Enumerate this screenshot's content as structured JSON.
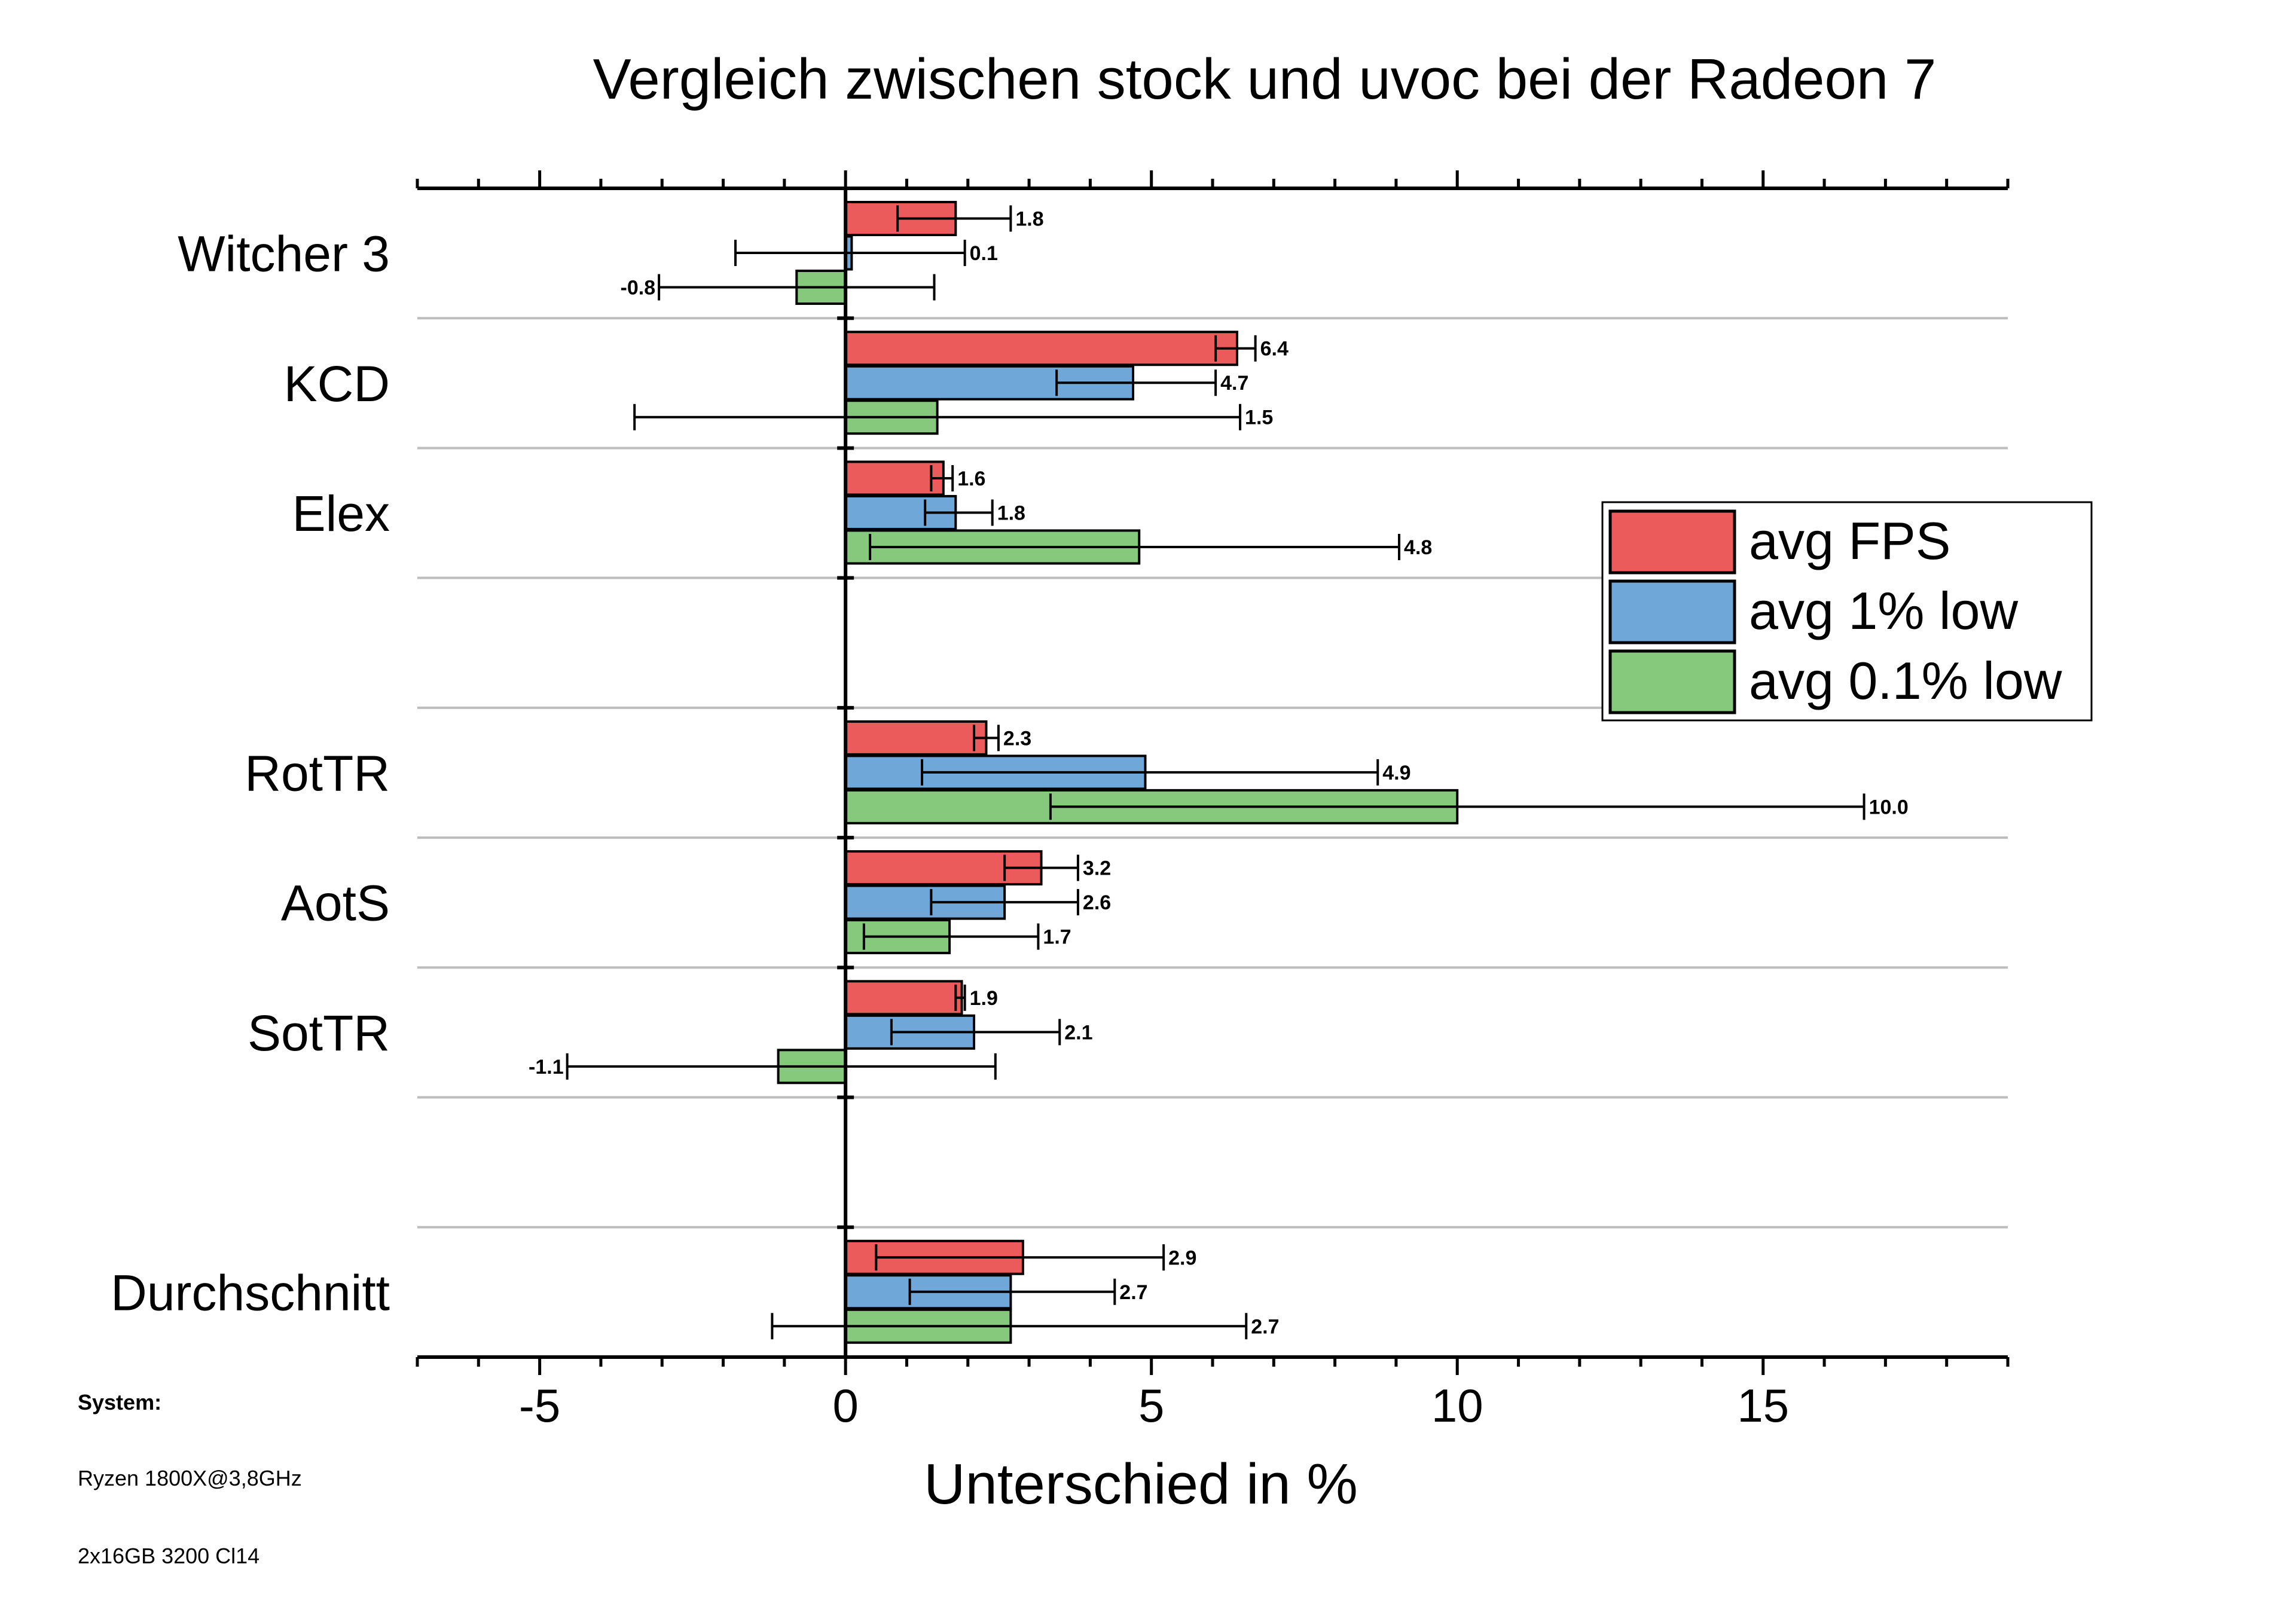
{
  "chart_data": {
    "type": "bar",
    "orientation": "horizontal",
    "title": "Vergleich zwischen stock und uvoc bei der Radeon 7",
    "xlabel": "Unterschied in %",
    "ylabel": "",
    "xlim": [
      -7,
      19
    ],
    "xticks": [
      -5,
      0,
      5,
      10,
      15
    ],
    "xtick_labels": [
      "-5",
      "0",
      "5",
      "10",
      "15"
    ],
    "legend_position": "right",
    "categories": [
      "Witcher 3",
      "KCD",
      "Elex",
      "",
      "RotTR",
      "AotS",
      "SotTR",
      "",
      "Durchschnitt"
    ],
    "series": [
      {
        "name": "avg FPS",
        "color": "#ec5b5b",
        "values": [
          1.8,
          6.4,
          1.6,
          null,
          2.3,
          3.2,
          1.9,
          null,
          2.9
        ],
        "labels": [
          "1.8",
          "6.4",
          "1.6",
          null,
          "2.3",
          "3.2",
          "1.9",
          null,
          "2.9"
        ],
        "err_low": [
          0.85,
          6.05,
          1.4,
          null,
          2.1,
          2.6,
          1.8,
          null,
          0.5
        ],
        "err_high": [
          2.7,
          6.7,
          1.75,
          null,
          2.5,
          3.8,
          1.95,
          null,
          5.2
        ]
      },
      {
        "name": "avg 1% low",
        "color": "#6fa8d8",
        "values": [
          0.1,
          4.7,
          1.8,
          null,
          4.9,
          2.6,
          2.1,
          null,
          2.7
        ],
        "labels": [
          "0.1",
          "4.7",
          "1.8",
          null,
          "4.9",
          "2.6",
          "2.1",
          null,
          "2.7"
        ],
        "err_low": [
          -1.8,
          3.45,
          1.3,
          null,
          1.25,
          1.4,
          0.75,
          null,
          1.05
        ],
        "err_high": [
          1.95,
          6.05,
          2.4,
          null,
          8.7,
          3.8,
          3.5,
          null,
          4.4
        ]
      },
      {
        "name": "avg 0.1% low",
        "color": "#86c97d",
        "values": [
          -0.8,
          1.5,
          4.8,
          null,
          10.0,
          1.7,
          -1.1,
          null,
          2.7
        ],
        "labels": [
          "-0.8",
          "1.5",
          "4.8",
          null,
          "10.0",
          "1.7",
          "-1.1",
          null,
          "2.7"
        ],
        "err_low": [
          -3.05,
          -3.45,
          0.4,
          null,
          3.35,
          0.3,
          -4.55,
          null,
          -1.2
        ],
        "err_high": [
          1.45,
          6.45,
          9.05,
          null,
          16.65,
          3.15,
          2.45,
          null,
          6.55
        ]
      }
    ]
  },
  "system": {
    "title": "System:",
    "cpu": "Ryzen 1800X@3,8GHz",
    "ram": "2x16GB 3200 Cl14"
  }
}
